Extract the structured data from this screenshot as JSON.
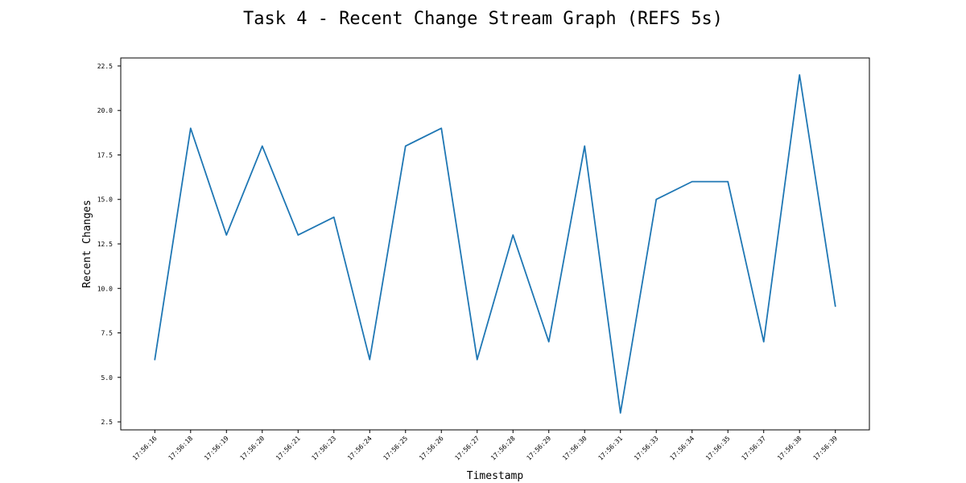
{
  "chart_data": {
    "type": "line",
    "title": "Task 4 - Recent Change Stream Graph (REFS 5s)",
    "xlabel": "Timestamp",
    "ylabel": "Recent Changes",
    "categories": [
      "17:56:16",
      "17:56:18",
      "17:56:19",
      "17:56:20",
      "17:56:21",
      "17:56:23",
      "17:56:24",
      "17:56:25",
      "17:56:26",
      "17:56:27",
      "17:56:28",
      "17:56:29",
      "17:56:30",
      "17:56:31",
      "17:56:33",
      "17:56:34",
      "17:56:35",
      "17:56:37",
      "17:56:38",
      "17:56:39"
    ],
    "series": [
      {
        "values": [
          6,
          19,
          13,
          18,
          13,
          14,
          6,
          18,
          19,
          6,
          13,
          7,
          18,
          3,
          15,
          16,
          16,
          7,
          22,
          9
        ],
        "color": "#1f77b4"
      }
    ],
    "yticks": [
      "2.5",
      "5.0",
      "7.5",
      "10.0",
      "12.5",
      "15.0",
      "17.5",
      "20.0",
      "22.5"
    ],
    "ylim": [
      2.05,
      22.95
    ],
    "grid": false,
    "legend": "none"
  }
}
